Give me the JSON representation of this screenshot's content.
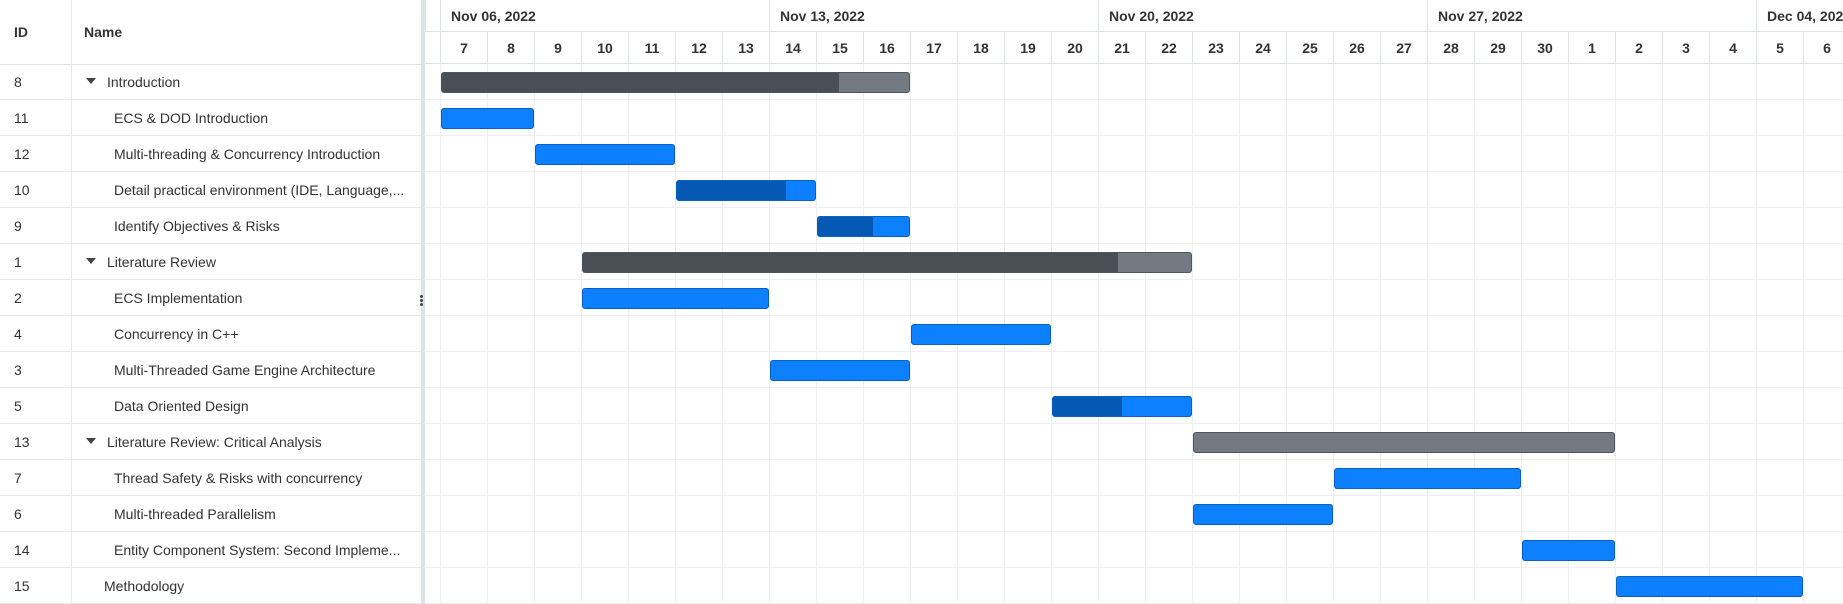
{
  "grid": {
    "columns": {
      "id": "ID",
      "name": "Name"
    },
    "rows": [
      {
        "id": "8",
        "name": "Introduction",
        "level": 0,
        "summary": true
      },
      {
        "id": "11",
        "name": "ECS & DOD Introduction",
        "level": 1,
        "summary": false
      },
      {
        "id": "12",
        "name": "Multi-threading & Concurrency Introduction",
        "level": 1,
        "summary": false
      },
      {
        "id": "10",
        "name": "Detail practical environment (IDE, Language,...",
        "level": 1,
        "summary": false
      },
      {
        "id": "9",
        "name": "Identify Objectives & Risks",
        "level": 1,
        "summary": false
      },
      {
        "id": "1",
        "name": "Literature Review",
        "level": 0,
        "summary": true
      },
      {
        "id": "2",
        "name": "ECS Implementation",
        "level": 1,
        "summary": false
      },
      {
        "id": "4",
        "name": "Concurrency in C++",
        "level": 1,
        "summary": false
      },
      {
        "id": "3",
        "name": "Multi-Threaded Game Engine Architecture",
        "level": 1,
        "summary": false
      },
      {
        "id": "5",
        "name": "Data Oriented Design",
        "level": 1,
        "summary": false
      },
      {
        "id": "13",
        "name": "Literature Review: Critical Analysis",
        "level": 0,
        "summary": true
      },
      {
        "id": "7",
        "name": "Thread Safety & Risks with concurrency",
        "level": 1,
        "summary": false
      },
      {
        "id": "6",
        "name": "Multi-threaded Parallelism",
        "level": 1,
        "summary": false
      },
      {
        "id": "14",
        "name": "Entity Component System: Second Impleme...",
        "level": 1,
        "summary": false
      },
      {
        "id": "15",
        "name": "Methodology",
        "level": 0,
        "summary": false,
        "leaf_root": true
      }
    ]
  },
  "timeline": {
    "weeks": [
      "Nov 06, 2022",
      "Nov 13, 2022",
      "Nov 20, 2022",
      "Nov 27, 2022",
      "Dec 04, 2022"
    ],
    "days": [
      "6",
      "7",
      "8",
      "9",
      "10",
      "11",
      "12",
      "13",
      "14",
      "15",
      "16",
      "17",
      "18",
      "19",
      "20",
      "21",
      "22",
      "23",
      "24",
      "25",
      "26",
      "27",
      "28",
      "29",
      "30",
      "1",
      "2",
      "3",
      "4",
      "5",
      "6"
    ],
    "bars": [
      {
        "row": 0,
        "start": "2022-11-07",
        "end": "2022-11-17",
        "progress": 0.85,
        "type": "summary"
      },
      {
        "row": 1,
        "start": "2022-11-07",
        "end": "2022-11-09",
        "progress": 0,
        "type": "task"
      },
      {
        "row": 2,
        "start": "2022-11-09",
        "end": "2022-11-12",
        "progress": 0,
        "type": "task"
      },
      {
        "row": 3,
        "start": "2022-11-12",
        "end": "2022-11-15",
        "progress": 0.79,
        "type": "task"
      },
      {
        "row": 4,
        "start": "2022-11-15",
        "end": "2022-11-17",
        "progress": 0.6,
        "type": "task"
      },
      {
        "row": 5,
        "start": "2022-11-10",
        "end": "2022-11-23",
        "progress": 0.88,
        "type": "summary"
      },
      {
        "row": 6,
        "start": "2022-11-10",
        "end": "2022-11-14",
        "progress": 0,
        "type": "task"
      },
      {
        "row": 7,
        "start": "2022-11-17",
        "end": "2022-11-20",
        "progress": 0,
        "type": "task"
      },
      {
        "row": 8,
        "start": "2022-11-14",
        "end": "2022-11-17",
        "progress": 0,
        "type": "task"
      },
      {
        "row": 9,
        "start": "2022-11-20",
        "end": "2022-11-23",
        "progress": 0.5,
        "type": "task"
      },
      {
        "row": 10,
        "start": "2022-11-23",
        "end": "2022-12-02",
        "progress": 0,
        "type": "summary"
      },
      {
        "row": 11,
        "start": "2022-11-26",
        "end": "2022-11-30",
        "progress": 0,
        "type": "task"
      },
      {
        "row": 12,
        "start": "2022-11-23",
        "end": "2022-11-26",
        "progress": 0,
        "type": "task"
      },
      {
        "row": 13,
        "start": "2022-11-30",
        "end": "2022-12-02",
        "progress": 0,
        "type": "task"
      },
      {
        "row": 14,
        "start": "2022-12-02",
        "end": "2022-12-06",
        "progress": 0,
        "type": "task"
      }
    ]
  },
  "colors": {
    "task": "#0d80ff",
    "task_progress": "#0559b5",
    "summary": "#747a82",
    "summary_progress": "#4a4f56"
  }
}
